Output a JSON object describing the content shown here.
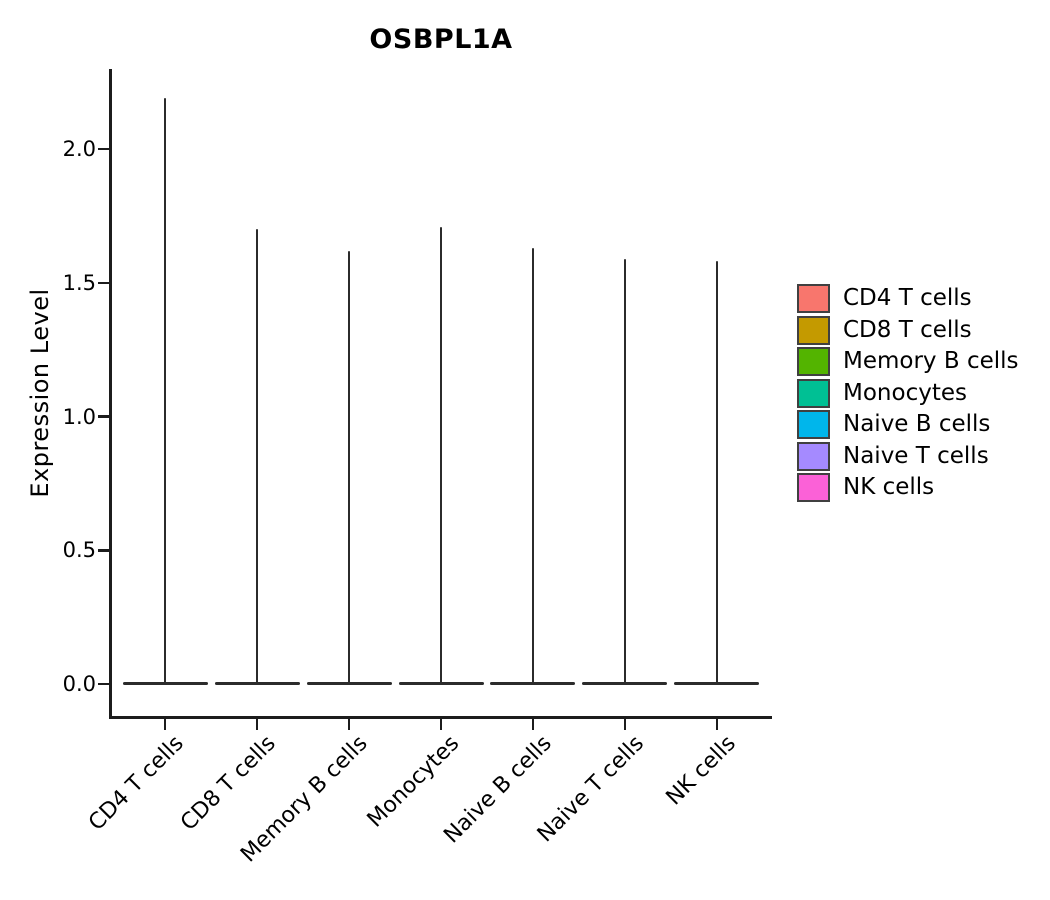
{
  "chart_data": {
    "type": "violin",
    "title": "OSBPL1A",
    "ylabel": "Expression Level",
    "xlabel": "",
    "ylim": [
      -0.12,
      2.3
    ],
    "yticks": [
      0.0,
      0.5,
      1.0,
      1.5,
      2.0
    ],
    "ytick_labels": [
      "0.0",
      "0.5",
      "1.0",
      "1.5",
      "2.0"
    ],
    "x_label_angle_deg": 45,
    "grid": "off",
    "outline_color": "#2b2b2b",
    "axis_color": "#1c1c1c",
    "categories": [
      "CD4 T cells",
      "CD8 T cells",
      "Memory B cells",
      "Monocytes",
      "Naive B cells",
      "Naive T cells",
      "NK cells"
    ],
    "violins": [
      {
        "category": "CD4 T cells",
        "color": "#F8766D",
        "min": 0.0,
        "max": 2.19,
        "bulk_at": 0.0
      },
      {
        "category": "CD8 T cells",
        "color": "#C49A00",
        "min": 0.0,
        "max": 1.7,
        "bulk_at": 0.0
      },
      {
        "category": "Memory B cells",
        "color": "#53B400",
        "min": 0.0,
        "max": 1.62,
        "bulk_at": 0.0
      },
      {
        "category": "Monocytes",
        "color": "#00C094",
        "min": 0.0,
        "max": 1.71,
        "bulk_at": 0.0
      },
      {
        "category": "Naive B cells",
        "color": "#00B6EB",
        "min": 0.0,
        "max": 1.63,
        "bulk_at": 0.0
      },
      {
        "category": "Naive T cells",
        "color": "#A58AFF",
        "min": 0.0,
        "max": 1.59,
        "bulk_at": 0.0
      },
      {
        "category": "NK cells",
        "color": "#FB61D7",
        "min": 0.0,
        "max": 1.58,
        "bulk_at": 0.0
      }
    ],
    "legend": {
      "position": "right",
      "entries": [
        {
          "label": "CD4 T cells",
          "color": "#F8766D"
        },
        {
          "label": "CD8 T cells",
          "color": "#C49A00"
        },
        {
          "label": "Memory B cells",
          "color": "#53B400"
        },
        {
          "label": "Monocytes",
          "color": "#00C094"
        },
        {
          "label": "Naive B cells",
          "color": "#00B6EB"
        },
        {
          "label": "Naive T cells",
          "color": "#A58AFF"
        },
        {
          "label": "NK cells",
          "color": "#FB61D7"
        }
      ]
    }
  }
}
